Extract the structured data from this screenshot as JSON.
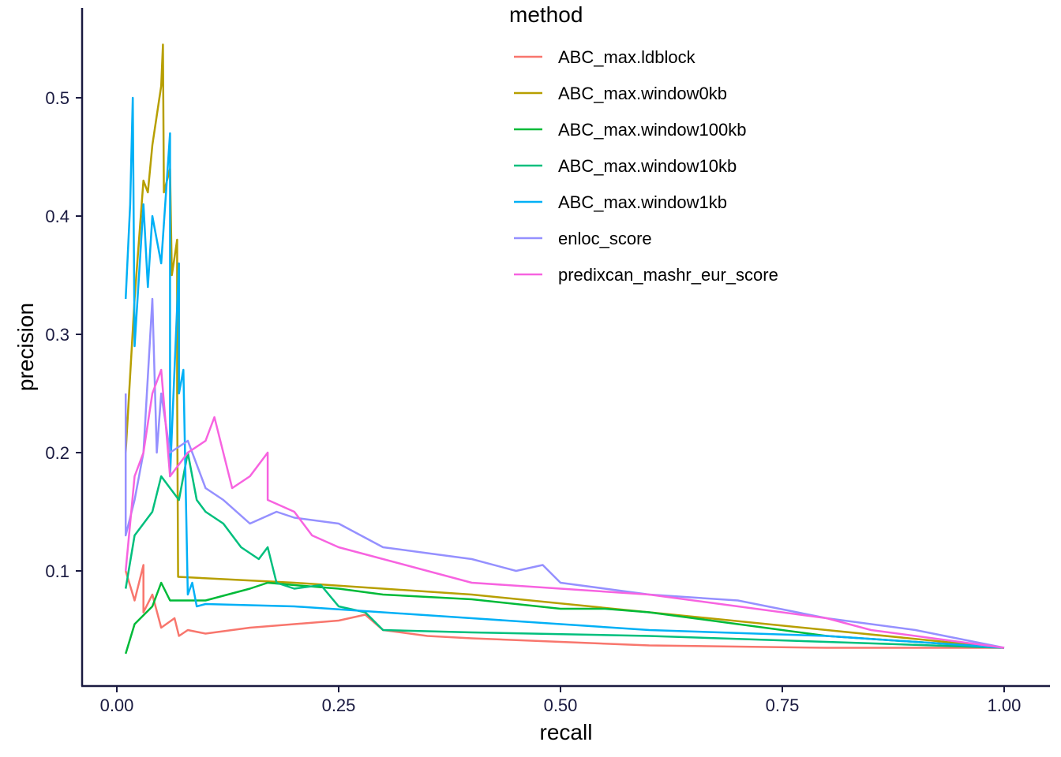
{
  "chart_data": {
    "type": "line",
    "title": "",
    "xlabel": "recall",
    "ylabel": "precision",
    "xlim": [
      0,
      1
    ],
    "ylim": [
      0.03,
      0.55
    ],
    "xticks": [
      0.0,
      0.25,
      0.5,
      0.75,
      1.0
    ],
    "xtick_labels": [
      "0.00",
      "0.25",
      "0.50",
      "0.75",
      "1.00"
    ],
    "yticks": [
      0.1,
      0.2,
      0.3,
      0.4,
      0.5
    ],
    "ytick_labels": [
      "0.1",
      "0.2",
      "0.3",
      "0.4",
      "0.5"
    ],
    "grid": false,
    "legend_title": "method",
    "legend_position": "top-right",
    "series": [
      {
        "name": "ABC_max.ldblock",
        "color": "#F8766D",
        "points": [
          [
            0.01,
            0.1
          ],
          [
            0.02,
            0.075
          ],
          [
            0.03,
            0.105
          ],
          [
            0.03,
            0.065
          ],
          [
            0.04,
            0.08
          ],
          [
            0.05,
            0.052
          ],
          [
            0.065,
            0.06
          ],
          [
            0.07,
            0.045
          ],
          [
            0.08,
            0.05
          ],
          [
            0.1,
            0.047
          ],
          [
            0.15,
            0.052
          ],
          [
            0.2,
            0.055
          ],
          [
            0.25,
            0.058
          ],
          [
            0.28,
            0.063
          ],
          [
            0.3,
            0.05
          ],
          [
            0.35,
            0.045
          ],
          [
            0.4,
            0.043
          ],
          [
            0.5,
            0.04
          ],
          [
            0.6,
            0.037
          ],
          [
            0.7,
            0.036
          ],
          [
            0.8,
            0.035
          ],
          [
            0.9,
            0.035
          ],
          [
            1.0,
            0.035
          ]
        ]
      },
      {
        "name": "ABC_max.window0kb",
        "color": "#B79F00",
        "points": [
          [
            0.01,
            0.2
          ],
          [
            0.02,
            0.33
          ],
          [
            0.03,
            0.43
          ],
          [
            0.035,
            0.42
          ],
          [
            0.04,
            0.46
          ],
          [
            0.05,
            0.51
          ],
          [
            0.052,
            0.545
          ],
          [
            0.053,
            0.42
          ],
          [
            0.06,
            0.44
          ],
          [
            0.062,
            0.35
          ],
          [
            0.068,
            0.38
          ],
          [
            0.068,
            0.25
          ],
          [
            0.069,
            0.095
          ],
          [
            0.2,
            0.09
          ],
          [
            0.4,
            0.08
          ],
          [
            0.6,
            0.065
          ],
          [
            0.8,
            0.05
          ],
          [
            1.0,
            0.035
          ]
        ]
      },
      {
        "name": "ABC_max.window100kb",
        "color": "#00BA38",
        "points": [
          [
            0.01,
            0.03
          ],
          [
            0.02,
            0.055
          ],
          [
            0.04,
            0.07
          ],
          [
            0.05,
            0.09
          ],
          [
            0.06,
            0.075
          ],
          [
            0.08,
            0.075
          ],
          [
            0.1,
            0.075
          ],
          [
            0.15,
            0.085
          ],
          [
            0.17,
            0.09
          ],
          [
            0.2,
            0.088
          ],
          [
            0.25,
            0.085
          ],
          [
            0.3,
            0.08
          ],
          [
            0.35,
            0.078
          ],
          [
            0.4,
            0.076
          ],
          [
            0.5,
            0.068
          ],
          [
            0.55,
            0.068
          ],
          [
            0.6,
            0.065
          ],
          [
            0.65,
            0.06
          ],
          [
            0.7,
            0.055
          ],
          [
            0.8,
            0.045
          ],
          [
            0.9,
            0.04
          ],
          [
            1.0,
            0.035
          ]
        ]
      },
      {
        "name": "ABC_max.window10kb",
        "color": "#00BF7D",
        "points": [
          [
            0.01,
            0.085
          ],
          [
            0.02,
            0.13
          ],
          [
            0.04,
            0.15
          ],
          [
            0.05,
            0.18
          ],
          [
            0.06,
            0.17
          ],
          [
            0.07,
            0.16
          ],
          [
            0.08,
            0.2
          ],
          [
            0.09,
            0.16
          ],
          [
            0.1,
            0.15
          ],
          [
            0.12,
            0.14
          ],
          [
            0.14,
            0.12
          ],
          [
            0.16,
            0.11
          ],
          [
            0.17,
            0.12
          ],
          [
            0.18,
            0.09
          ],
          [
            0.2,
            0.085
          ],
          [
            0.23,
            0.088
          ],
          [
            0.25,
            0.07
          ],
          [
            0.28,
            0.065
          ],
          [
            0.3,
            0.05
          ],
          [
            0.4,
            0.048
          ],
          [
            0.6,
            0.045
          ],
          [
            0.8,
            0.04
          ],
          [
            1.0,
            0.035
          ]
        ]
      },
      {
        "name": "ABC_max.window1kb",
        "color": "#00B0F6",
        "points": [
          [
            0.01,
            0.33
          ],
          [
            0.015,
            0.41
          ],
          [
            0.018,
            0.5
          ],
          [
            0.02,
            0.29
          ],
          [
            0.03,
            0.41
          ],
          [
            0.035,
            0.34
          ],
          [
            0.04,
            0.4
          ],
          [
            0.05,
            0.36
          ],
          [
            0.06,
            0.47
          ],
          [
            0.06,
            0.18
          ],
          [
            0.07,
            0.36
          ],
          [
            0.07,
            0.25
          ],
          [
            0.075,
            0.27
          ],
          [
            0.08,
            0.08
          ],
          [
            0.085,
            0.09
          ],
          [
            0.09,
            0.07
          ],
          [
            0.1,
            0.072
          ],
          [
            0.2,
            0.07
          ],
          [
            0.4,
            0.06
          ],
          [
            0.6,
            0.05
          ],
          [
            0.8,
            0.045
          ],
          [
            1.0,
            0.035
          ]
        ]
      },
      {
        "name": "enloc_score",
        "color": "#9590FF",
        "points": [
          [
            0.01,
            0.25
          ],
          [
            0.01,
            0.13
          ],
          [
            0.02,
            0.16
          ],
          [
            0.03,
            0.2
          ],
          [
            0.04,
            0.33
          ],
          [
            0.045,
            0.2
          ],
          [
            0.05,
            0.25
          ],
          [
            0.06,
            0.2
          ],
          [
            0.08,
            0.21
          ],
          [
            0.1,
            0.17
          ],
          [
            0.12,
            0.16
          ],
          [
            0.15,
            0.14
          ],
          [
            0.18,
            0.15
          ],
          [
            0.2,
            0.145
          ],
          [
            0.25,
            0.14
          ],
          [
            0.3,
            0.12
          ],
          [
            0.35,
            0.115
          ],
          [
            0.4,
            0.11
          ],
          [
            0.45,
            0.1
          ],
          [
            0.48,
            0.105
          ],
          [
            0.5,
            0.09
          ],
          [
            0.55,
            0.085
          ],
          [
            0.6,
            0.08
          ],
          [
            0.7,
            0.075
          ],
          [
            0.8,
            0.06
          ],
          [
            0.9,
            0.05
          ],
          [
            1.0,
            0.035
          ]
        ]
      },
      {
        "name": "predixcan_mashr_eur_score",
        "color": "#F763E0",
        "points": [
          [
            0.01,
            0.1
          ],
          [
            0.02,
            0.18
          ],
          [
            0.03,
            0.2
          ],
          [
            0.04,
            0.25
          ],
          [
            0.05,
            0.27
          ],
          [
            0.06,
            0.18
          ],
          [
            0.07,
            0.19
          ],
          [
            0.08,
            0.2
          ],
          [
            0.1,
            0.21
          ],
          [
            0.11,
            0.23
          ],
          [
            0.13,
            0.17
          ],
          [
            0.15,
            0.18
          ],
          [
            0.17,
            0.2
          ],
          [
            0.17,
            0.16
          ],
          [
            0.2,
            0.15
          ],
          [
            0.22,
            0.13
          ],
          [
            0.25,
            0.12
          ],
          [
            0.3,
            0.11
          ],
          [
            0.35,
            0.1
          ],
          [
            0.4,
            0.09
          ],
          [
            0.5,
            0.085
          ],
          [
            0.6,
            0.08
          ],
          [
            0.7,
            0.07
          ],
          [
            0.8,
            0.06
          ],
          [
            0.85,
            0.05
          ],
          [
            0.9,
            0.045
          ],
          [
            0.95,
            0.04
          ],
          [
            1.0,
            0.035
          ]
        ]
      }
    ]
  }
}
